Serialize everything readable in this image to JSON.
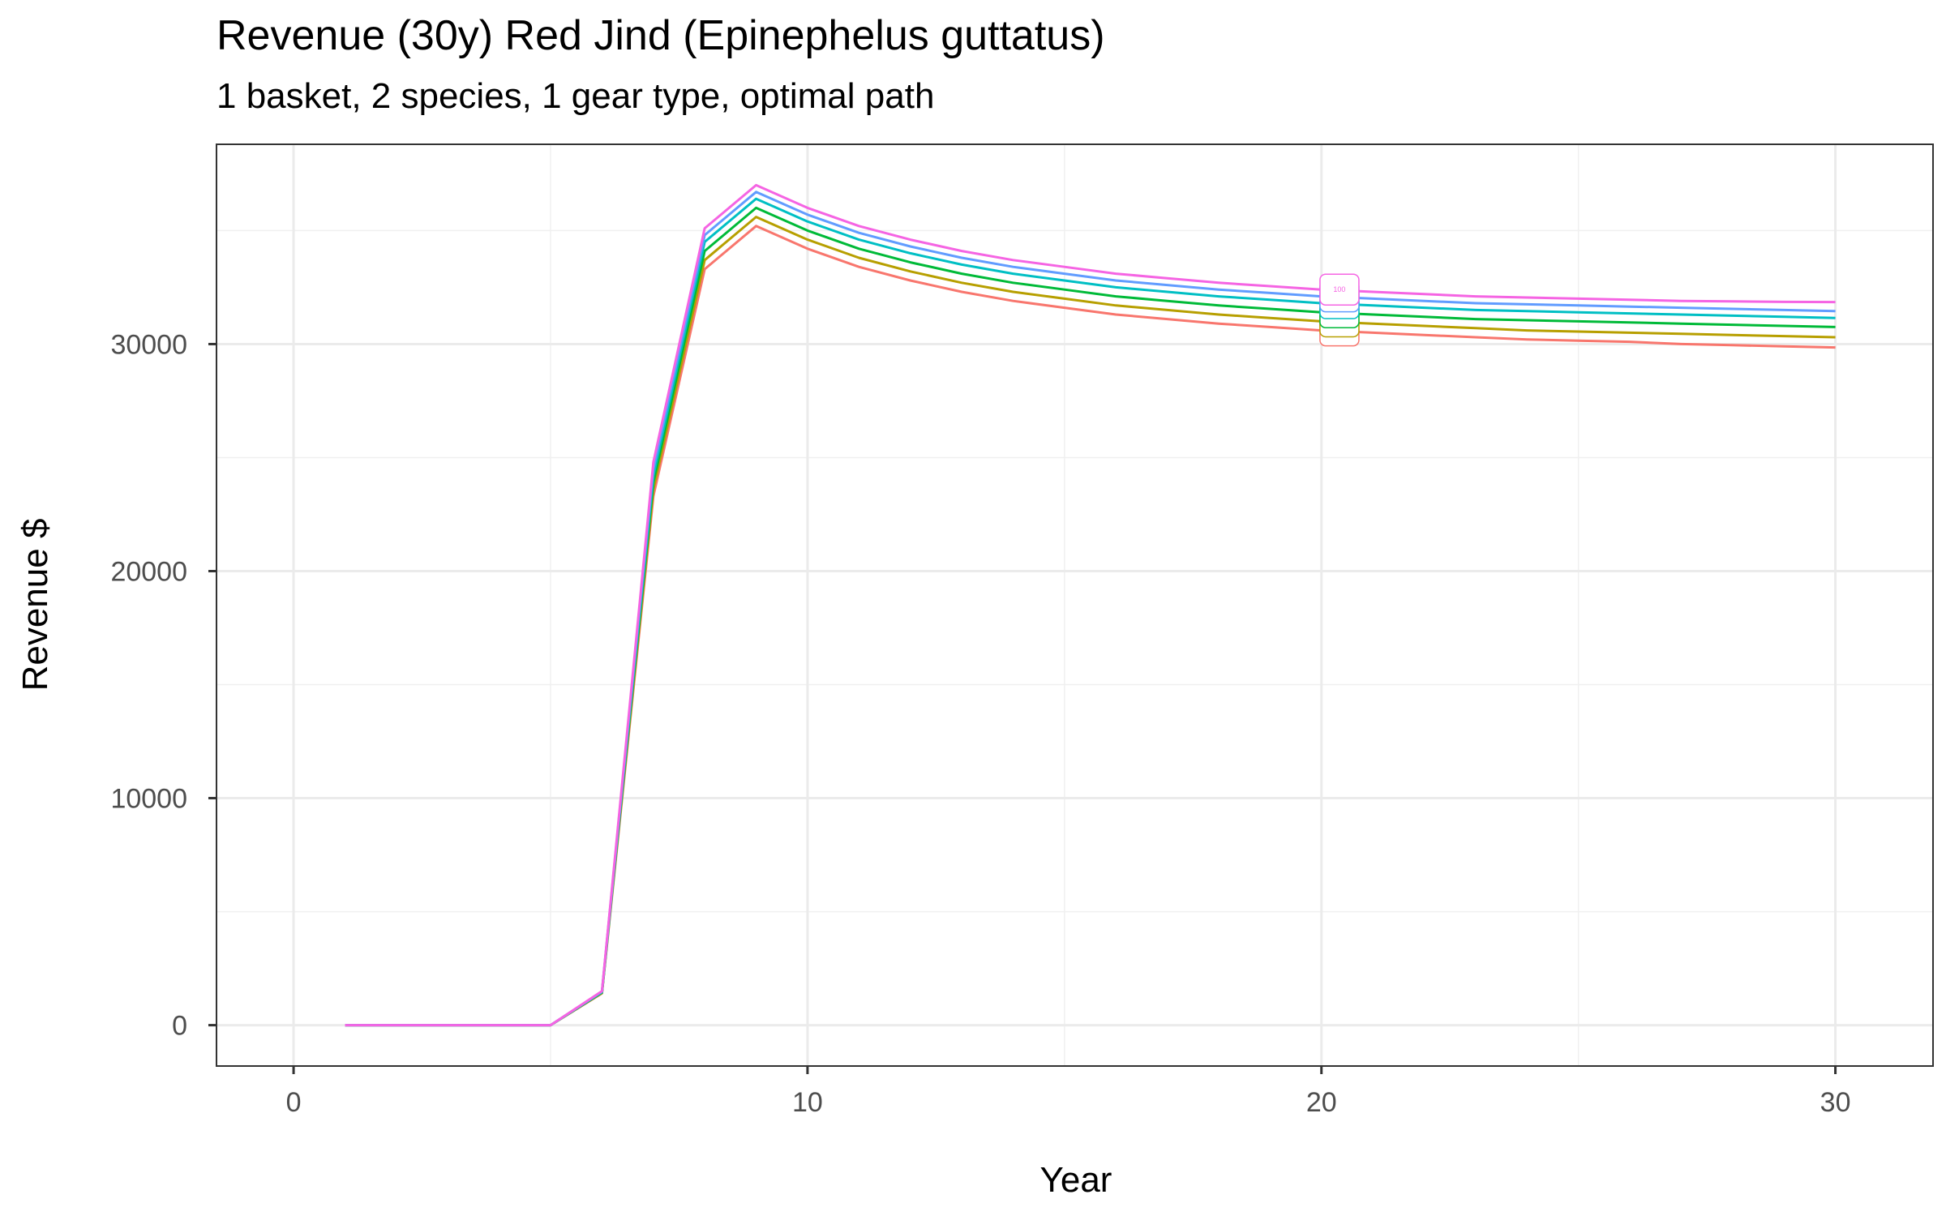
{
  "chart_data": {
    "type": "line",
    "title": "Revenue (30y) Red Jind (Epinephelus guttatus)",
    "subtitle": "1 basket, 2 species, 1 gear type, optimal path",
    "xlabel": "Year",
    "ylabel": "Revenue $",
    "xlim": [
      -1.5,
      31.9
    ],
    "ylim": [
      -1800,
      38800
    ],
    "xticks": [
      0,
      10,
      20,
      30
    ],
    "yticks": [
      0,
      10000,
      20000,
      30000
    ],
    "grid": true,
    "legend": "none",
    "x": [
      1,
      2,
      3,
      4,
      5,
      6,
      7,
      8,
      9,
      10,
      11,
      12,
      13,
      14,
      15,
      16,
      17,
      18,
      19,
      20,
      21,
      22,
      23,
      24,
      25,
      26,
      27,
      28,
      29,
      30
    ],
    "series": [
      {
        "color": "#F8766D",
        "values": [
          0,
          0,
          0,
          0,
          0,
          1400,
          23300,
          33300,
          35200,
          34200,
          33400,
          32800,
          32300,
          31900,
          31600,
          31300,
          31100,
          30900,
          30750,
          30600,
          30500,
          30400,
          30300,
          30200,
          30150,
          30100,
          30000,
          29950,
          29900,
          29850
        ]
      },
      {
        "color": "#B79F00",
        "values": [
          0,
          0,
          0,
          0,
          0,
          1420,
          23600,
          33700,
          35600,
          34600,
          33800,
          33200,
          32700,
          32300,
          32000,
          31700,
          31500,
          31300,
          31150,
          31000,
          30900,
          30800,
          30700,
          30600,
          30550,
          30500,
          30450,
          30400,
          30350,
          30300
        ]
      },
      {
        "color": "#00BA38",
        "values": [
          0,
          0,
          0,
          0,
          0,
          1440,
          23900,
          34100,
          36000,
          35000,
          34200,
          33600,
          33100,
          32700,
          32400,
          32100,
          31900,
          31700,
          31550,
          31400,
          31300,
          31200,
          31100,
          31050,
          31000,
          30950,
          30900,
          30850,
          30800,
          30750
        ]
      },
      {
        "color": "#00BFC4",
        "values": [
          0,
          0,
          0,
          0,
          0,
          1460,
          24200,
          34500,
          36400,
          35400,
          34600,
          34000,
          33500,
          33100,
          32800,
          32500,
          32300,
          32100,
          31950,
          31800,
          31700,
          31600,
          31500,
          31450,
          31400,
          31350,
          31300,
          31250,
          31200,
          31150
        ]
      },
      {
        "color": "#619CFF",
        "values": [
          0,
          0,
          0,
          0,
          0,
          1480,
          24500,
          34800,
          36700,
          35700,
          34900,
          34300,
          33800,
          33400,
          33100,
          32800,
          32600,
          32400,
          32250,
          32100,
          32000,
          31900,
          31800,
          31750,
          31700,
          31650,
          31600,
          31550,
          31500,
          31450
        ]
      },
      {
        "color": "#F564E3",
        "values": [
          0,
          0,
          0,
          0,
          0,
          1500,
          24800,
          35100,
          37000,
          36000,
          35200,
          34600,
          34100,
          33700,
          33400,
          33100,
          32900,
          32700,
          32550,
          32400,
          32300,
          32200,
          32100,
          32050,
          32000,
          31950,
          31900,
          31880,
          31860,
          31850
        ]
      }
    ],
    "end_label_x": 20.35,
    "end_label_text": "100"
  }
}
